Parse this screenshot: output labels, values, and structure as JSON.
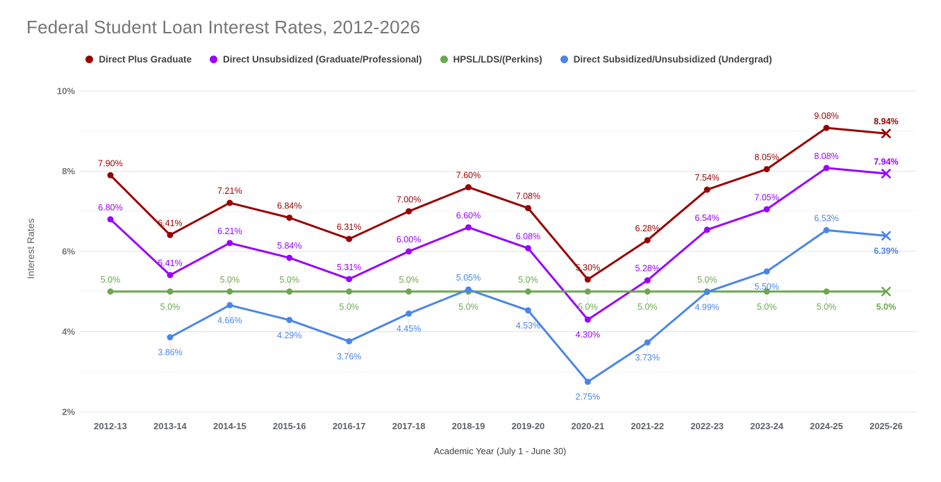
{
  "title": "Federal Student Loan Interest Rates, 2012-2026",
  "chart_data": {
    "type": "line",
    "title": "Federal Student Loan Interest Rates, 2012-2026",
    "xlabel": "Academic Year (July 1 - June 30)",
    "ylabel": "Interest Rates",
    "ylim": [
      2,
      10
    ],
    "y_ticks": [
      10,
      8,
      6,
      4,
      2
    ],
    "y_tick_labels": [
      "10%",
      "8%",
      "6%",
      "4%",
      "2%"
    ],
    "y_minor_ticks": [
      9,
      7,
      5,
      3
    ],
    "grid": "horizontal",
    "legend_position": "top",
    "last_point_estimated": true,
    "categories": [
      "2012-13",
      "2013-14",
      "2014-15",
      "2015-16",
      "2016-17",
      "2017-18",
      "2018-19",
      "2019-20",
      "2020-21",
      "2021-22",
      "2022-23",
      "2023-24",
      "2024-25",
      "2025-26"
    ],
    "series": [
      {
        "name": "Direct Plus Graduate",
        "color": "#990000",
        "values": [
          7.9,
          6.41,
          7.21,
          6.84,
          6.31,
          7.0,
          7.6,
          7.08,
          5.3,
          6.28,
          7.54,
          8.05,
          9.08,
          8.94
        ],
        "labels": [
          "7.90%",
          "6.41%",
          "7.21%",
          "6.84%",
          "6.31%",
          "7.00%",
          "7.60%",
          "7.08%",
          "5.30%",
          "6.28%",
          "7.54%",
          "8.05%",
          "9.08%",
          "8.94%"
        ],
        "label_side": [
          "above",
          "above",
          "above",
          "above",
          "above",
          "above",
          "above",
          "above",
          "above",
          "above",
          "above",
          "above",
          "above",
          "above"
        ]
      },
      {
        "name": "Direct Unsubsidized (Graduate/Professional)",
        "color": "#9900ff",
        "values": [
          6.8,
          5.41,
          6.21,
          5.84,
          5.31,
          6.0,
          6.6,
          6.08,
          4.3,
          5.28,
          6.54,
          7.05,
          8.08,
          7.94
        ],
        "labels": [
          "6.80%",
          "5.41%",
          "6.21%",
          "5.84%",
          "5.31%",
          "6.00%",
          "6.60%",
          "6.08%",
          "4.30%",
          "5.28%",
          "6.54%",
          "7.05%",
          "8.08%",
          "7.94%"
        ],
        "label_side": [
          "above",
          "above",
          "above",
          "above",
          "above",
          "above",
          "above",
          "above",
          "below",
          "above",
          "above",
          "above",
          "above",
          "above"
        ]
      },
      {
        "name": "HPSL/LDS/(Perkins)",
        "color": "#6aa84f",
        "values": [
          5.0,
          5.0,
          5.0,
          5.0,
          5.0,
          5.0,
          5.0,
          5.0,
          5.0,
          5.0,
          5.0,
          5.0,
          5.0,
          5.0
        ],
        "labels": [
          "5.0%",
          "5.0%",
          "5.0%",
          "5.0%",
          "5.0%",
          "5.0%",
          "5.0%",
          "5.0%",
          "5.0%",
          "5.0%",
          "5.0%",
          "5.0%",
          "5.0%",
          "5.0%"
        ],
        "label_side": [
          "above",
          "below",
          "above",
          "above",
          "below",
          "above",
          "below",
          "above",
          "below",
          "below",
          "above",
          "below",
          "below",
          "below"
        ]
      },
      {
        "name": "Direct Subsidized/Unsubsidized (Undergrad)",
        "color": "#4a86e8",
        "values": [
          null,
          3.86,
          4.66,
          4.29,
          3.76,
          4.45,
          5.05,
          4.53,
          2.75,
          3.73,
          4.99,
          5.5,
          6.53,
          6.39
        ],
        "labels": [
          null,
          "3.86%",
          "4.66%",
          "4.29%",
          "3.76%",
          "4.45%",
          "5.05%",
          "4.53%",
          "2.75%",
          "3.73%",
          "4.99%",
          "5.50%",
          "6.53%",
          "6.39%"
        ],
        "label_side": [
          null,
          "below",
          "below",
          "below",
          "below",
          "below",
          "above",
          "below",
          "below",
          "below",
          "below",
          "below",
          "above",
          "below"
        ]
      }
    ]
  },
  "colors": {
    "title_text": "#757575",
    "legend_text": "#424242",
    "axis_tick_text": "#757575",
    "gridline_major": "#e3e3e3",
    "gridline_minor": "#f3f3f3",
    "background": "#ffffff"
  }
}
